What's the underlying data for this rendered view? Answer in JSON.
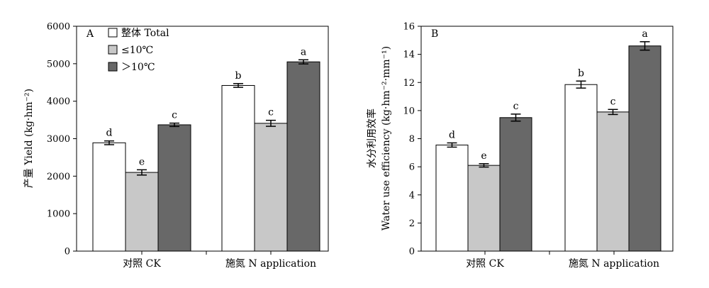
{
  "colors": {
    "total": "#ffffff",
    "low": "#c8c8c8",
    "high": "#686868",
    "stroke": "#000000"
  },
  "chart_data": [
    {
      "type": "bar",
      "panel_label": "A",
      "ylabel": "产量 Yield (kg·hm⁻²)",
      "ylim": [
        0,
        6000
      ],
      "yticks": [
        0,
        1000,
        2000,
        3000,
        4000,
        5000,
        6000
      ],
      "categories": [
        "对照 CK",
        "施氮 N application"
      ],
      "legend": {
        "position": "top-left"
      },
      "series": [
        {
          "name": "整体 Total",
          "values": [
            2890,
            4420
          ],
          "errors": [
            50,
            50
          ],
          "letters": [
            "d",
            "b"
          ]
        },
        {
          "name": "≤10℃",
          "values": [
            2100,
            3410
          ],
          "errors": [
            70,
            80
          ],
          "letters": [
            "e",
            "c"
          ]
        },
        {
          "name": "＞10℃",
          "values": [
            3370,
            5050
          ],
          "errors": [
            45,
            55
          ],
          "letters": [
            "c",
            "a"
          ]
        }
      ]
    },
    {
      "type": "bar",
      "panel_label": "B",
      "ylabel_line1": "水分利用效率",
      "ylabel_line2": "Water use efficiency (kg·hm⁻²·mm⁻¹)",
      "ylim": [
        0,
        16
      ],
      "yticks": [
        0,
        2,
        4,
        6,
        8,
        10,
        12,
        14,
        16
      ],
      "categories": [
        "对照 CK",
        "施氮 N application"
      ],
      "series": [
        {
          "name": "整体 Total",
          "values": [
            7.55,
            11.85
          ],
          "errors": [
            0.15,
            0.25
          ],
          "letters": [
            "d",
            "b"
          ]
        },
        {
          "name": "≤10℃",
          "values": [
            6.1,
            9.9
          ],
          "errors": [
            0.12,
            0.18
          ],
          "letters": [
            "e",
            "c"
          ]
        },
        {
          "name": "＞10℃",
          "values": [
            9.5,
            14.6
          ],
          "errors": [
            0.25,
            0.3
          ],
          "letters": [
            "c",
            "a"
          ]
        }
      ]
    }
  ]
}
